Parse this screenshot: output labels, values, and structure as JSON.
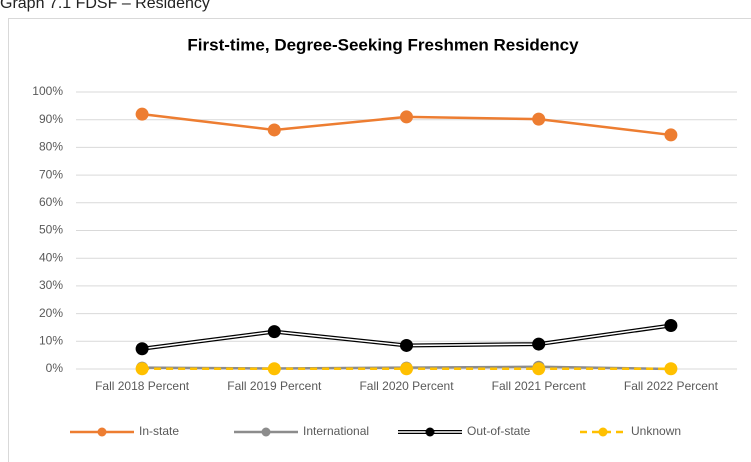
{
  "heading": "Graph 7.1 FDSF – Residency",
  "chart_data": {
    "type": "line",
    "title": "First-time, Degree-Seeking Freshmen Residency",
    "categories": [
      "Fall 2018 Percent",
      "Fall 2019 Percent",
      "Fall 2020 Percent",
      "Fall 2021 Percent",
      "Fall 2022 Percent"
    ],
    "series": [
      {
        "name": "In-state",
        "color": "#ed7d31",
        "values": [
          92,
          86.3,
          91,
          90.2,
          84.5
        ]
      },
      {
        "name": "International",
        "color": "#8c8c8c",
        "values": [
          0.5,
          0.2,
          0.5,
          0.8,
          0
        ]
      },
      {
        "name": "Out-of-state",
        "color": "#000000",
        "values": [
          7.3,
          13.5,
          8.5,
          9,
          15.7
        ]
      },
      {
        "name": "Unknown",
        "color": "#ffc000",
        "values": [
          0.1,
          0.1,
          0.1,
          0.1,
          0.1
        ]
      }
    ],
    "ylim": [
      0,
      100
    ],
    "yticks": [
      {
        "value": 0,
        "label": "0%"
      },
      {
        "value": 10,
        "label": "10%"
      },
      {
        "value": 20,
        "label": "20%"
      },
      {
        "value": 30,
        "label": "30%"
      },
      {
        "value": 40,
        "label": "40%"
      },
      {
        "value": 50,
        "label": "50%"
      },
      {
        "value": 60,
        "label": "60%"
      },
      {
        "value": 70,
        "label": "70%"
      },
      {
        "value": 80,
        "label": "80%"
      },
      {
        "value": 90,
        "label": "90%"
      },
      {
        "value": 100,
        "label": "100%"
      }
    ],
    "grid": true,
    "legend": "bottom"
  }
}
